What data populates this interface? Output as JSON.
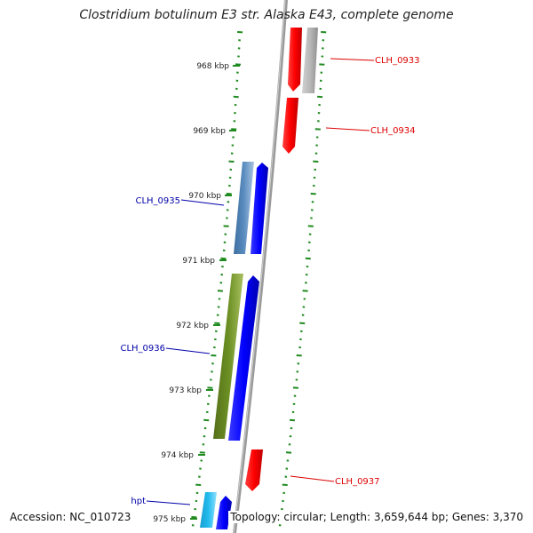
{
  "title": "Clostridium botulinum E3 str. Alaska E43, complete genome",
  "accession_text": "Accession: NC_010723",
  "summary_text": "Topology: circular; Length: 3,659,644 bp; Genes: 3,370",
  "kbp_labels": [
    {
      "text": "968 kbp"
    },
    {
      "text": "969 kbp"
    },
    {
      "text": "970 kbp"
    },
    {
      "text": "971 kbp"
    },
    {
      "text": "972 kbp"
    },
    {
      "text": "973 kbp"
    },
    {
      "text": "974 kbp"
    },
    {
      "text": "975 kbp"
    }
  ],
  "gene_labels": [
    {
      "text": "CLH_0933",
      "color": "#dd0000"
    },
    {
      "text": "CLH_0934",
      "color": "#dd0000"
    },
    {
      "text": "CLH_0935",
      "color": "#0000aa"
    },
    {
      "text": "CLH_0936",
      "color": "#0000aa"
    },
    {
      "text": "CLH_0937",
      "color": "#dd0000"
    },
    {
      "text": "hpt",
      "color": "#0000aa"
    }
  ],
  "colors": {
    "backbone": "#888888",
    "tick": "#1f8a1f",
    "forward_gene": "#ff0000",
    "reverse_gene": "#0000ff",
    "pseudo_gene": "#b8b8b8",
    "cog_steelblue": "#4f86b8",
    "cog_olive": "#6b8e23",
    "cog_cyan": "#22bbee"
  }
}
